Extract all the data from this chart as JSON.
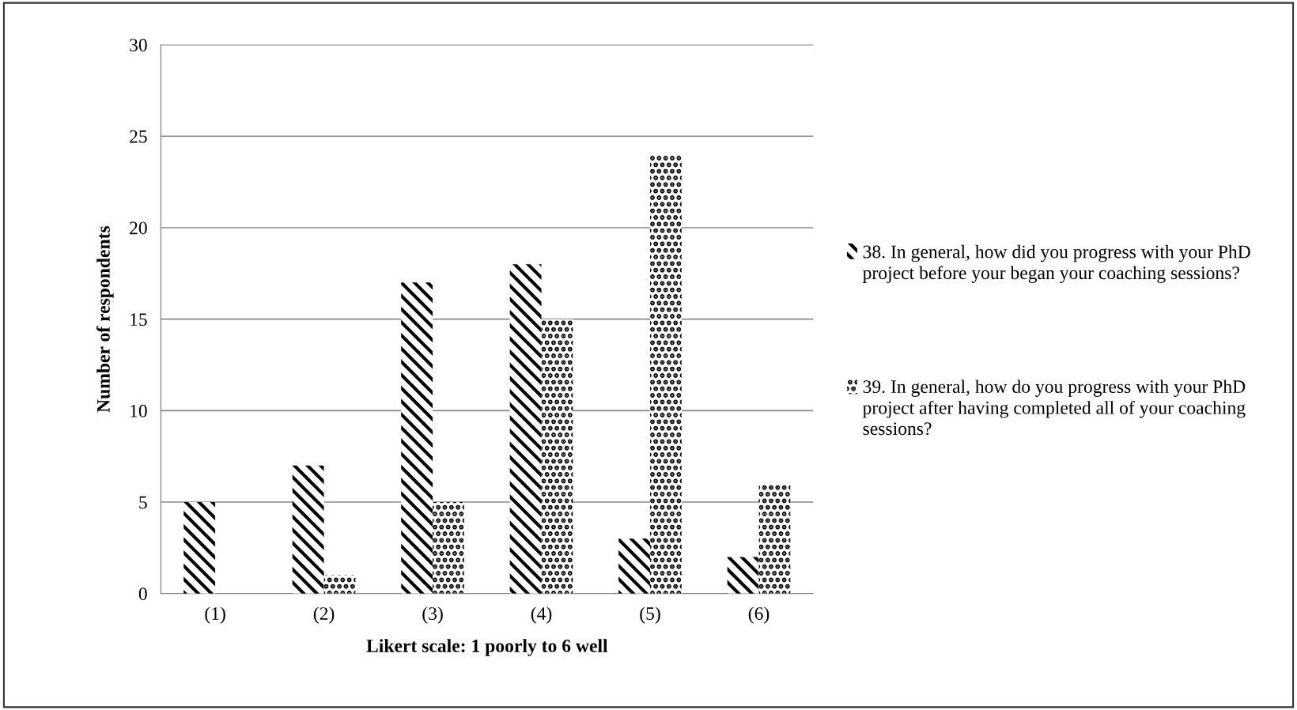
{
  "chart_data": {
    "type": "bar",
    "xlabel": "Likert scale: 1 poorly to 6 well",
    "ylabel": "Number of respondents",
    "categories": [
      "(1)",
      "(2)",
      "(3)",
      "(4)",
      "(5)",
      "(6)"
    ],
    "series": [
      {
        "name": "38. In general, how did you progress with your PhD project before your began your coaching sessions?",
        "color": "#000000",
        "values": [
          5,
          7,
          17,
          18,
          3,
          2
        ]
      },
      {
        "name": "39. In general, how do you progress with your PhD project after having completed all of your coaching sessions?",
        "color": "#000000",
        "values": [
          0,
          1,
          5,
          15,
          24,
          6
        ]
      }
    ],
    "ylim": [
      0,
      30
    ],
    "yticks": [
      0,
      5,
      10,
      15,
      20,
      25,
      30
    ],
    "grid": "y",
    "legend": "right"
  }
}
